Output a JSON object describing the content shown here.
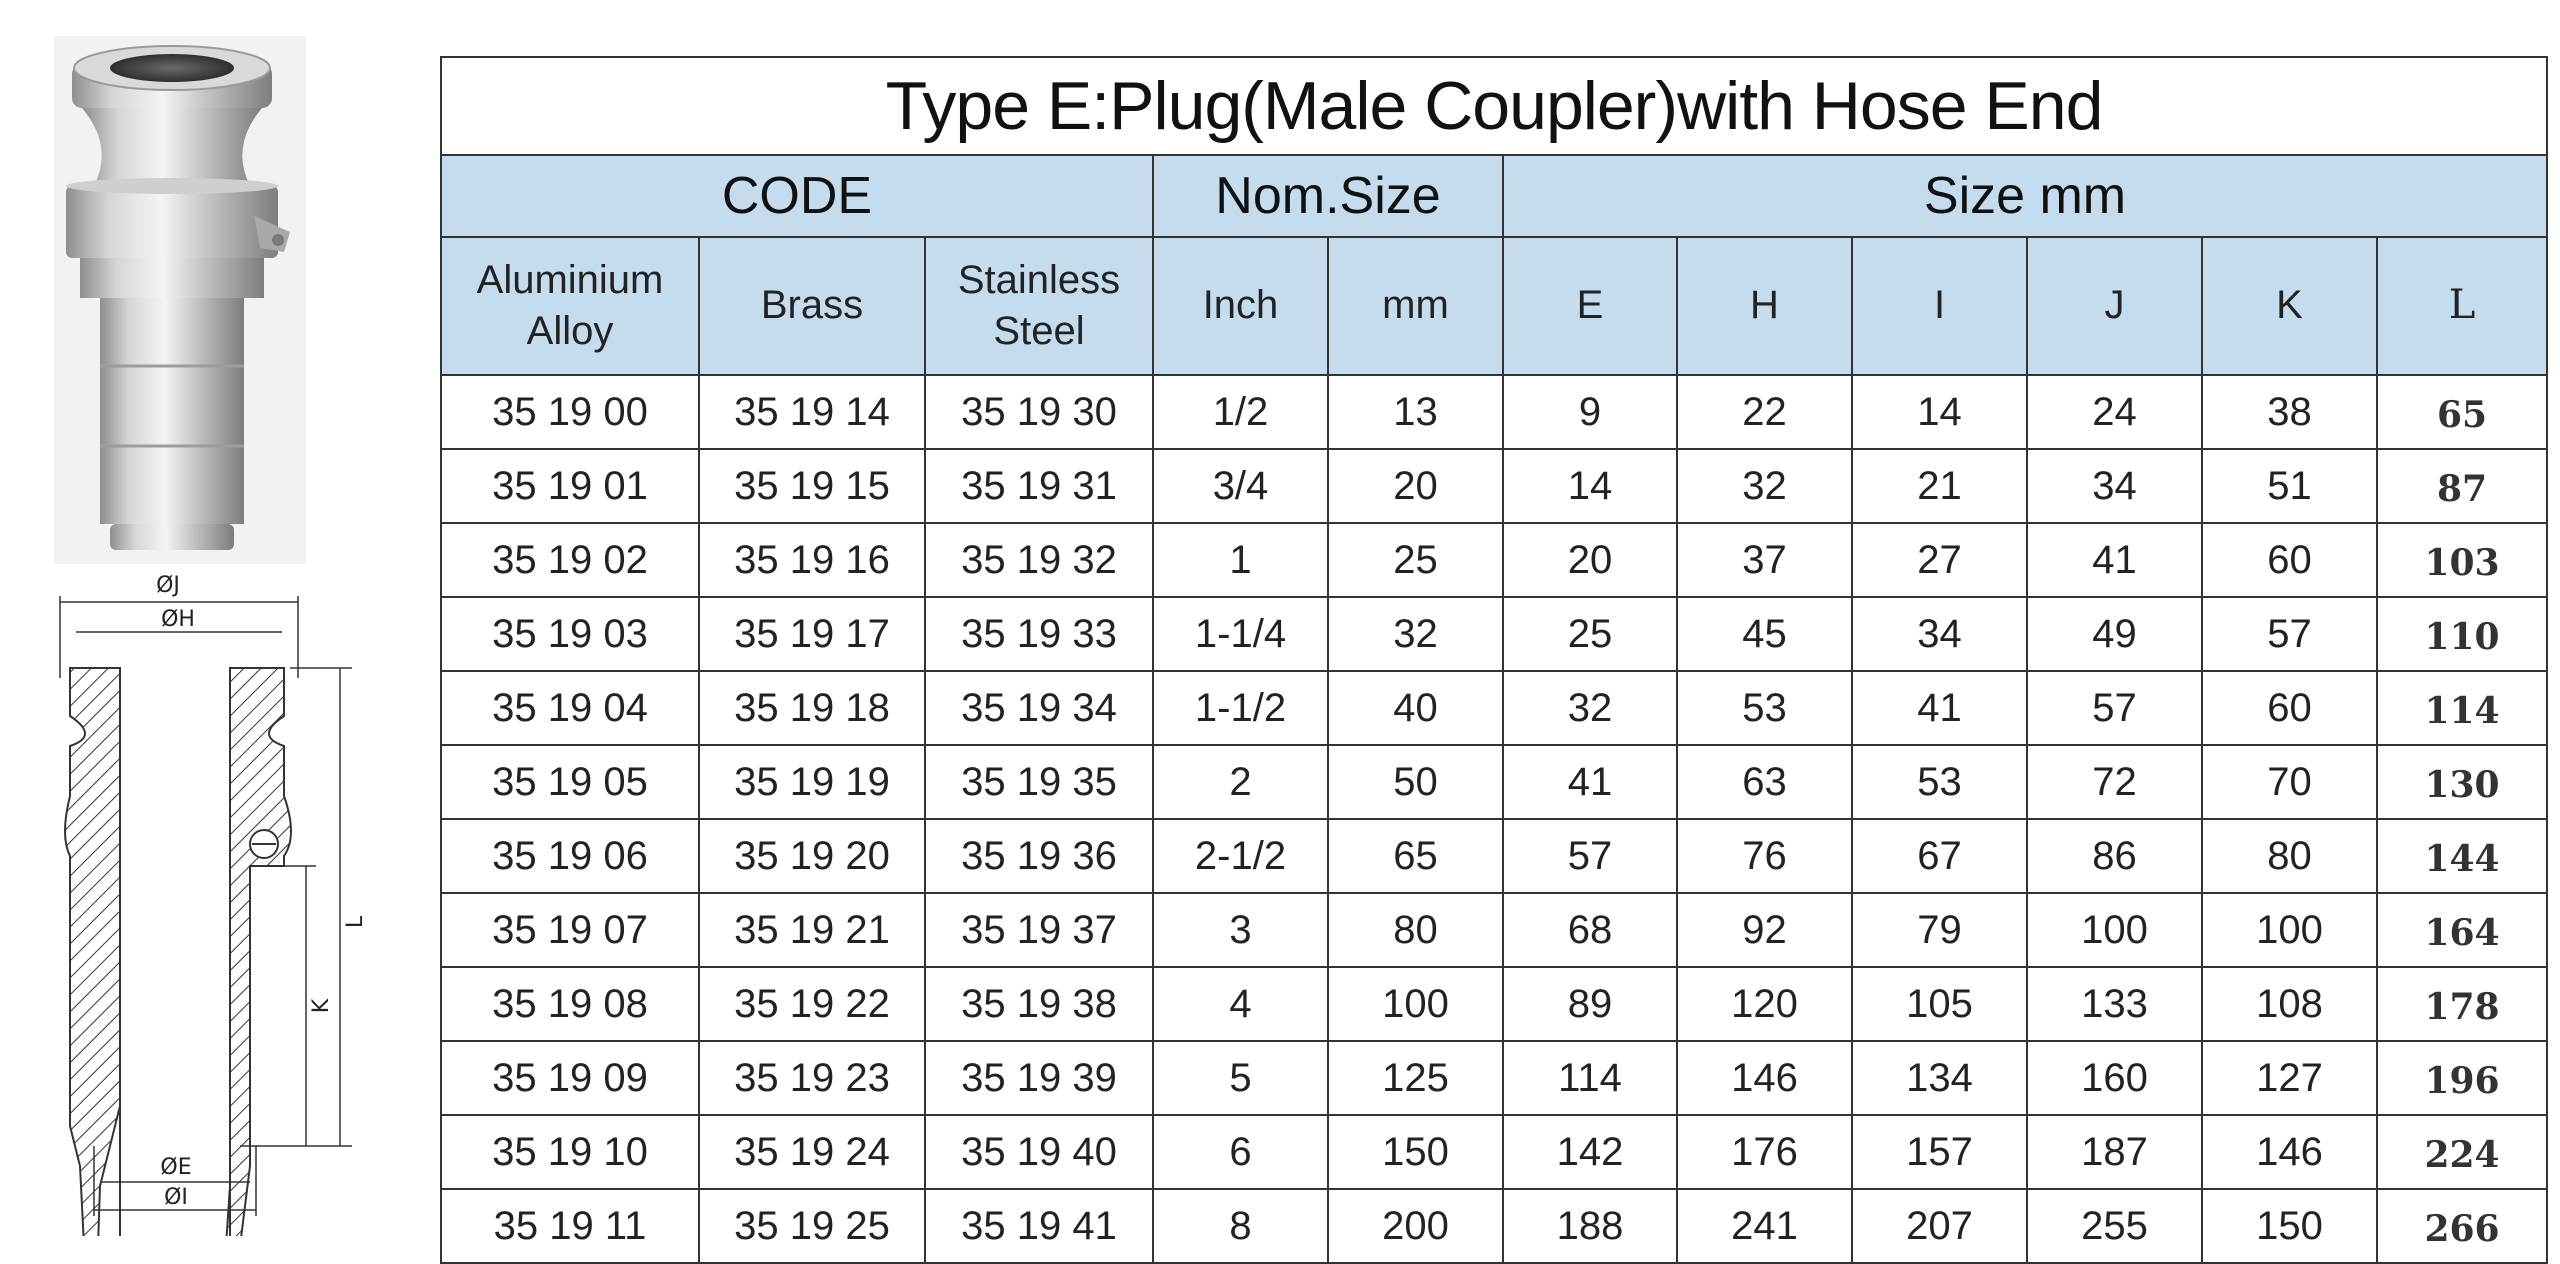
{
  "title": "Type E:Plug(Male Coupler)with Hose End",
  "group_headers": {
    "code": "CODE",
    "nom_size": "Nom.Size",
    "size_mm": "Size mm"
  },
  "column_headers": {
    "aluminium": [
      "Aluminium",
      "Alloy"
    ],
    "brass": "Brass",
    "stainless": [
      "Stainless",
      "Steel"
    ],
    "inch": "Inch",
    "mm": "mm",
    "E": "E",
    "H": "H",
    "I": "I",
    "J": "J",
    "K": "K",
    "L": "L"
  },
  "rows": [
    [
      "35 19 00",
      "35 19 14",
      "35 19 30",
      "1/2",
      "13",
      "9",
      "22",
      "14",
      "24",
      "38",
      "65"
    ],
    [
      "35 19 01",
      "35 19 15",
      "35 19 31",
      "3/4",
      "20",
      "14",
      "32",
      "21",
      "34",
      "51",
      "87"
    ],
    [
      "35 19 02",
      "35 19 16",
      "35 19 32",
      "1",
      "25",
      "20",
      "37",
      "27",
      "41",
      "60",
      "103"
    ],
    [
      "35 19 03",
      "35 19 17",
      "35 19 33",
      "1-1/4",
      "32",
      "25",
      "45",
      "34",
      "49",
      "57",
      "110"
    ],
    [
      "35 19 04",
      "35 19 18",
      "35 19 34",
      "1-1/2",
      "40",
      "32",
      "53",
      "41",
      "57",
      "60",
      "114"
    ],
    [
      "35 19 05",
      "35 19 19",
      "35 19 35",
      "2",
      "50",
      "41",
      "63",
      "53",
      "72",
      "70",
      "130"
    ],
    [
      "35 19 06",
      "35 19 20",
      "35 19 36",
      "2-1/2",
      "65",
      "57",
      "76",
      "67",
      "86",
      "80",
      "144"
    ],
    [
      "35 19 07",
      "35 19 21",
      "35 19 37",
      "3",
      "80",
      "68",
      "92",
      "79",
      "100",
      "100",
      "164"
    ],
    [
      "35 19 08",
      "35 19 22",
      "35 19 38",
      "4",
      "100",
      "89",
      "120",
      "105",
      "133",
      "108",
      "178"
    ],
    [
      "35 19 09",
      "35 19 23",
      "35 19 39",
      "5",
      "125",
      "114",
      "146",
      "134",
      "160",
      "127",
      "196"
    ],
    [
      "35 19 10",
      "35 19 24",
      "35 19 40",
      "6",
      "150",
      "142",
      "176",
      "157",
      "187",
      "146",
      "224"
    ],
    [
      "35 19 11",
      "35 19 25",
      "35 19 41",
      "8",
      "200",
      "188",
      "241",
      "207",
      "255",
      "150",
      "266"
    ]
  ],
  "drawing_labels": {
    "J": "ØJ",
    "H": "ØH",
    "E": "ØE",
    "I": "ØI",
    "L": "L",
    "K": "K"
  },
  "colors": {
    "header_fill": "#c5dcef",
    "border": "#333333",
    "metal": "#b9b9b9"
  }
}
